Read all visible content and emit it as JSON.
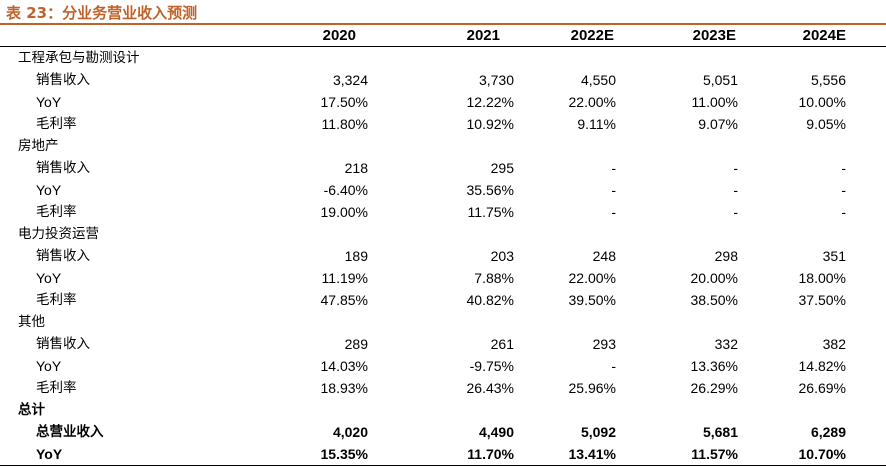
{
  "title": "表 23：分业务营业收入预测",
  "headers": [
    "",
    "2020",
    "2021",
    "2022E",
    "2023E",
    "2024E"
  ],
  "sections": [
    {
      "name": "工程承包与勘测设计",
      "rows": [
        {
          "label": "销售收入",
          "values": [
            "3,324",
            "3,730",
            "4,550",
            "5,051",
            "5,556"
          ]
        },
        {
          "label": "YoY",
          "values": [
            "17.50%",
            "12.22%",
            "22.00%",
            "11.00%",
            "10.00%"
          ]
        },
        {
          "label": "毛利率",
          "values": [
            "11.80%",
            "10.92%",
            "9.11%",
            "9.07%",
            "9.05%"
          ]
        }
      ]
    },
    {
      "name": "房地产",
      "rows": [
        {
          "label": "销售收入",
          "values": [
            "218",
            "295",
            "-",
            "-",
            "-"
          ]
        },
        {
          "label": "YoY",
          "values": [
            "-6.40%",
            "35.56%",
            "-",
            "-",
            "-"
          ]
        },
        {
          "label": "毛利率",
          "values": [
            "19.00%",
            "11.75%",
            "-",
            "-",
            "-"
          ]
        }
      ]
    },
    {
      "name": "电力投资运营",
      "rows": [
        {
          "label": "销售收入",
          "values": [
            "189",
            "203",
            "248",
            "298",
            "351"
          ]
        },
        {
          "label": "YoY",
          "values": [
            "11.19%",
            "7.88%",
            "22.00%",
            "20.00%",
            "18.00%"
          ]
        },
        {
          "label": "毛利率",
          "values": [
            "47.85%",
            "40.82%",
            "39.50%",
            "38.50%",
            "37.50%"
          ]
        }
      ]
    },
    {
      "name": "其他",
      "rows": [
        {
          "label": "销售收入",
          "values": [
            "289",
            "261",
            "293",
            "332",
            "382"
          ]
        },
        {
          "label": "YoY",
          "values": [
            "14.03%",
            "-9.75%",
            "-",
            "13.36%",
            "14.82%"
          ]
        },
        {
          "label": "毛利率",
          "values": [
            "18.93%",
            "26.43%",
            "25.96%",
            "26.29%",
            "26.69%"
          ]
        }
      ]
    }
  ],
  "total": {
    "name": "总计",
    "rows": [
      {
        "label": "总营业收入",
        "values": [
          "4,020",
          "4,490",
          "5,092",
          "5,681",
          "6,289"
        ]
      },
      {
        "label": "YoY",
        "values": [
          "15.35%",
          "11.70%",
          "13.41%",
          "11.57%",
          "10.70%"
        ]
      }
    ]
  },
  "colors": {
    "title": "#c0622a",
    "rule": "#c0622a",
    "text": "#000000"
  }
}
